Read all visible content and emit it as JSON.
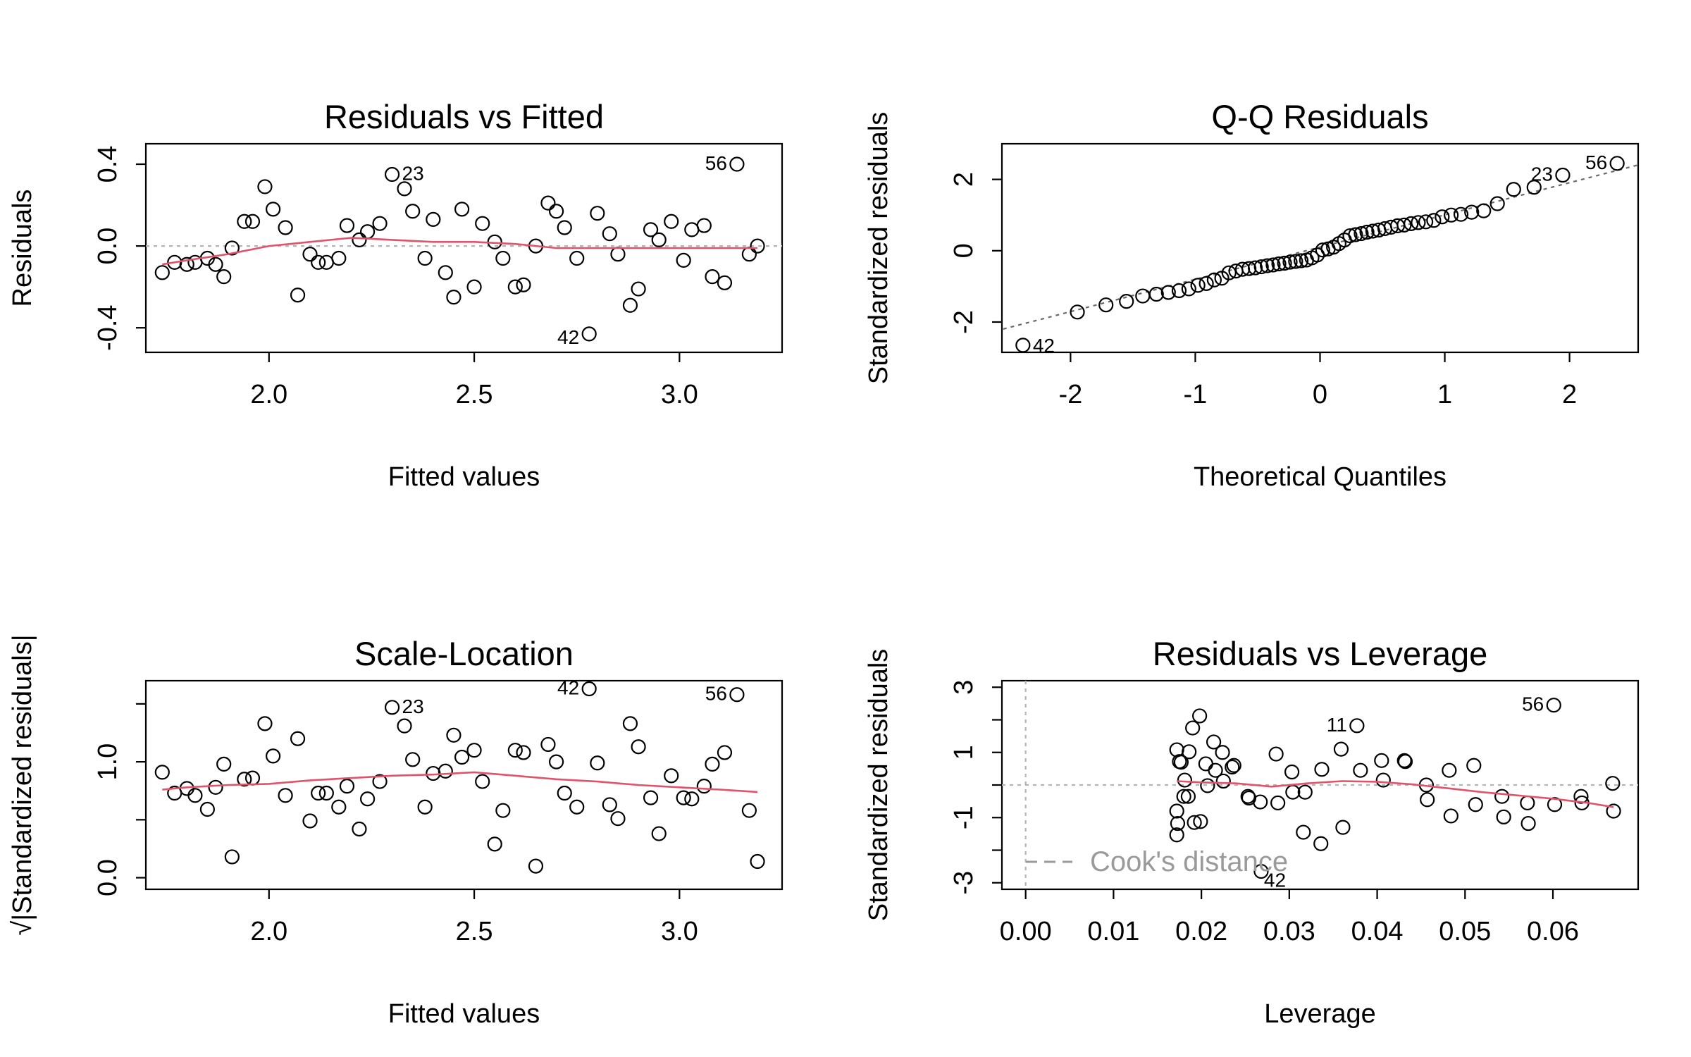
{
  "chart_data": [
    {
      "type": "scatter",
      "title": "Residuals vs Fitted",
      "xlabel": "Fitted values",
      "ylabel": "Residuals",
      "xlim": [
        1.7,
        3.25
      ],
      "ylim": [
        -0.52,
        0.5
      ],
      "xticks": [
        {
          "v": 2.0,
          "label": "2.0"
        },
        {
          "v": 2.5,
          "label": "2.5"
        },
        {
          "v": 3.0,
          "label": "3.0"
        }
      ],
      "yticks": [
        {
          "v": -0.4,
          "label": "-0.4"
        },
        {
          "v": 0.0,
          "label": "0.0"
        },
        {
          "v": 0.4,
          "label": "0.4"
        }
      ],
      "reference_h": 0,
      "points": [
        [
          1.74,
          -0.13
        ],
        [
          1.77,
          -0.08
        ],
        [
          1.8,
          -0.09
        ],
        [
          1.82,
          -0.08
        ],
        [
          1.85,
          -0.06
        ],
        [
          1.87,
          -0.09
        ],
        [
          1.89,
          -0.15
        ],
        [
          1.91,
          -0.01
        ],
        [
          1.94,
          0.12
        ],
        [
          1.96,
          0.12
        ],
        [
          1.99,
          0.29
        ],
        [
          2.01,
          0.18
        ],
        [
          2.04,
          0.09
        ],
        [
          2.07,
          -0.24
        ],
        [
          2.1,
          -0.04
        ],
        [
          2.12,
          -0.08
        ],
        [
          2.14,
          -0.08
        ],
        [
          2.17,
          -0.06
        ],
        [
          2.19,
          0.1
        ],
        [
          2.22,
          0.03
        ],
        [
          2.24,
          0.07
        ],
        [
          2.27,
          0.11
        ],
        [
          2.3,
          0.35
        ],
        [
          2.33,
          0.28
        ],
        [
          2.35,
          0.17
        ],
        [
          2.38,
          -0.06
        ],
        [
          2.4,
          0.13
        ],
        [
          2.43,
          -0.13
        ],
        [
          2.45,
          -0.25
        ],
        [
          2.47,
          0.18
        ],
        [
          2.5,
          -0.2
        ],
        [
          2.52,
          0.11
        ],
        [
          2.55,
          0.02
        ],
        [
          2.57,
          -0.06
        ],
        [
          2.6,
          -0.2
        ],
        [
          2.62,
          -0.19
        ],
        [
          2.65,
          0.0
        ],
        [
          2.68,
          0.21
        ],
        [
          2.7,
          0.17
        ],
        [
          2.72,
          0.09
        ],
        [
          2.75,
          -0.06
        ],
        [
          2.78,
          -0.43
        ],
        [
          2.8,
          0.16
        ],
        [
          2.83,
          0.06
        ],
        [
          2.85,
          -0.04
        ],
        [
          2.88,
          -0.29
        ],
        [
          2.9,
          -0.21
        ],
        [
          2.93,
          0.08
        ],
        [
          2.95,
          0.03
        ],
        [
          2.98,
          0.12
        ],
        [
          3.01,
          -0.07
        ],
        [
          3.03,
          0.08
        ],
        [
          3.06,
          0.1
        ],
        [
          3.08,
          -0.15
        ],
        [
          3.11,
          -0.18
        ],
        [
          3.14,
          0.4
        ],
        [
          3.17,
          -0.04
        ],
        [
          3.19,
          0.0
        ]
      ],
      "labels": [
        {
          "text": "23",
          "x": 2.3,
          "y": 0.35
        },
        {
          "text": "56",
          "x": 3.14,
          "y": 0.4
        },
        {
          "text": "42",
          "x": 2.78,
          "y": -0.43
        }
      ],
      "smooth": [
        [
          1.74,
          -0.09
        ],
        [
          1.8,
          -0.07
        ],
        [
          1.9,
          -0.04
        ],
        [
          2.0,
          0.0
        ],
        [
          2.1,
          0.02
        ],
        [
          2.2,
          0.04
        ],
        [
          2.3,
          0.03
        ],
        [
          2.4,
          0.02
        ],
        [
          2.5,
          0.02
        ],
        [
          2.6,
          0.01
        ],
        [
          2.7,
          -0.01
        ],
        [
          2.8,
          -0.01
        ],
        [
          2.9,
          -0.01
        ],
        [
          3.0,
          -0.01
        ],
        [
          3.1,
          -0.01
        ],
        [
          3.19,
          -0.01
        ]
      ]
    },
    {
      "type": "scatter",
      "title": "Q-Q Residuals",
      "xlabel": "Theoretical Quantiles",
      "ylabel": "Standardized residuals",
      "xlim": [
        -2.55,
        2.55
      ],
      "ylim": [
        -2.85,
        3.0
      ],
      "xticks": [
        {
          "v": -2,
          "label": "-2"
        },
        {
          "v": -1,
          "label": "-1"
        },
        {
          "v": 0,
          "label": "0"
        },
        {
          "v": 1,
          "label": "1"
        },
        {
          "v": 2,
          "label": "2"
        }
      ],
      "yticks": [
        {
          "v": -2,
          "label": "-2"
        },
        {
          "v": 0,
          "label": "0"
        },
        {
          "v": 2,
          "label": "2"
        }
      ],
      "qq_line": [
        [
          -2.6,
          -2.25
        ],
        [
          2.6,
          2.45
        ]
      ],
      "qq_y": [
        -2.65,
        -1.72,
        -1.52,
        -1.42,
        -1.27,
        -1.22,
        -1.17,
        -1.12,
        -1.07,
        -0.97,
        -0.92,
        -0.82,
        -0.77,
        -0.62,
        -0.57,
        -0.52,
        -0.5,
        -0.48,
        -0.45,
        -0.42,
        -0.4,
        -0.37,
        -0.35,
        -0.32,
        -0.3,
        -0.28,
        -0.26,
        -0.2,
        -0.12,
        0.02,
        0.05,
        0.1,
        0.2,
        0.3,
        0.42,
        0.45,
        0.48,
        0.52,
        0.55,
        0.58,
        0.62,
        0.66,
        0.7,
        0.72,
        0.76,
        0.79,
        0.81,
        0.85,
        0.95,
        1.0,
        1.02,
        1.08,
        1.12,
        1.32,
        1.72,
        1.78,
        2.12,
        2.45
      ],
      "labels": [
        {
          "text": "42",
          "idx": 0
        },
        {
          "text": "23",
          "idx": 56
        },
        {
          "text": "56",
          "idx": 57
        }
      ]
    },
    {
      "type": "scatter",
      "title": "Scale-Location",
      "xlabel": "Fitted values",
      "ylabel": "√|Standardized residuals|",
      "xlim": [
        1.7,
        3.25
      ],
      "ylim": [
        -0.1,
        1.7
      ],
      "xticks": [
        {
          "v": 2.0,
          "label": "2.0"
        },
        {
          "v": 2.5,
          "label": "2.5"
        },
        {
          "v": 3.0,
          "label": "3.0"
        }
      ],
      "yticks": [
        {
          "v": 0.0,
          "label": "0.0"
        },
        {
          "v": 0.5,
          "label": ""
        },
        {
          "v": 1.0,
          "label": "1.0"
        },
        {
          "v": 1.5,
          "label": ""
        }
      ],
      "points": [
        [
          1.74,
          0.91
        ],
        [
          1.77,
          0.73
        ],
        [
          1.8,
          0.77
        ],
        [
          1.82,
          0.71
        ],
        [
          1.85,
          0.59
        ],
        [
          1.87,
          0.78
        ],
        [
          1.89,
          0.98
        ],
        [
          1.91,
          0.18
        ],
        [
          1.94,
          0.85
        ],
        [
          1.96,
          0.86
        ],
        [
          1.99,
          1.33
        ],
        [
          2.01,
          1.05
        ],
        [
          2.04,
          0.71
        ],
        [
          2.07,
          1.2
        ],
        [
          2.1,
          0.49
        ],
        [
          2.12,
          0.73
        ],
        [
          2.14,
          0.73
        ],
        [
          2.17,
          0.61
        ],
        [
          2.19,
          0.79
        ],
        [
          2.22,
          0.42
        ],
        [
          2.24,
          0.68
        ],
        [
          2.27,
          0.83
        ],
        [
          2.3,
          1.47
        ],
        [
          2.33,
          1.31
        ],
        [
          2.35,
          1.02
        ],
        [
          2.38,
          0.61
        ],
        [
          2.4,
          0.9
        ],
        [
          2.43,
          0.92
        ],
        [
          2.45,
          1.23
        ],
        [
          2.47,
          1.04
        ],
        [
          2.5,
          1.1
        ],
        [
          2.52,
          0.83
        ],
        [
          2.55,
          0.29
        ],
        [
          2.57,
          0.58
        ],
        [
          2.6,
          1.1
        ],
        [
          2.62,
          1.08
        ],
        [
          2.65,
          0.1
        ],
        [
          2.68,
          1.15
        ],
        [
          2.7,
          1.0
        ],
        [
          2.72,
          0.73
        ],
        [
          2.75,
          0.61
        ],
        [
          2.78,
          1.63
        ],
        [
          2.8,
          0.99
        ],
        [
          2.83,
          0.63
        ],
        [
          2.85,
          0.51
        ],
        [
          2.88,
          1.33
        ],
        [
          2.9,
          1.13
        ],
        [
          2.93,
          0.69
        ],
        [
          2.95,
          0.38
        ],
        [
          2.98,
          0.88
        ],
        [
          3.01,
          0.69
        ],
        [
          3.03,
          0.68
        ],
        [
          3.06,
          0.79
        ],
        [
          3.08,
          0.98
        ],
        [
          3.11,
          1.08
        ],
        [
          3.14,
          1.58
        ],
        [
          3.17,
          0.58
        ],
        [
          3.19,
          0.14
        ]
      ],
      "labels": [
        {
          "text": "23",
          "x": 2.3,
          "y": 1.47
        },
        {
          "text": "42",
          "x": 2.78,
          "y": 1.63
        },
        {
          "text": "56",
          "x": 3.14,
          "y": 1.58
        }
      ],
      "smooth": [
        [
          1.74,
          0.76
        ],
        [
          1.8,
          0.78
        ],
        [
          1.9,
          0.8
        ],
        [
          2.0,
          0.81
        ],
        [
          2.1,
          0.84
        ],
        [
          2.2,
          0.86
        ],
        [
          2.3,
          0.88
        ],
        [
          2.4,
          0.89
        ],
        [
          2.5,
          0.91
        ],
        [
          2.6,
          0.88
        ],
        [
          2.7,
          0.85
        ],
        [
          2.8,
          0.83
        ],
        [
          2.9,
          0.8
        ],
        [
          3.0,
          0.78
        ],
        [
          3.1,
          0.76
        ],
        [
          3.19,
          0.74
        ]
      ]
    },
    {
      "type": "scatter",
      "title": "Residuals vs Leverage",
      "xlabel": "Leverage",
      "ylabel": "Standardized residuals",
      "xlim": [
        -0.0027,
        0.0697
      ],
      "ylim": [
        -3.2,
        3.2
      ],
      "xticks": [
        {
          "v": 0.0,
          "label": "0.00"
        },
        {
          "v": 0.01,
          "label": "0.01"
        },
        {
          "v": 0.02,
          "label": "0.02"
        },
        {
          "v": 0.03,
          "label": "0.03"
        },
        {
          "v": 0.04,
          "label": "0.04"
        },
        {
          "v": 0.05,
          "label": "0.05"
        },
        {
          "v": 0.06,
          "label": "0.06"
        }
      ],
      "yticks": [
        {
          "v": -3,
          "label": "-3"
        },
        {
          "v": -2,
          "label": ""
        },
        {
          "v": -1,
          "label": "-1"
        },
        {
          "v": 0,
          "label": ""
        },
        {
          "v": 1,
          "label": "1"
        },
        {
          "v": 2,
          "label": ""
        },
        {
          "v": 3,
          "label": "3"
        }
      ],
      "reference_h": 0,
      "reference_v": 0,
      "legend": "Cook's distance",
      "points": [
        [
          0.0172,
          1.08
        ],
        [
          0.0175,
          0.72
        ],
        [
          0.0177,
          0.7
        ],
        [
          0.0172,
          -0.8
        ],
        [
          0.0173,
          -1.18
        ],
        [
          0.0172,
          -1.53
        ],
        [
          0.018,
          -0.35
        ],
        [
          0.0181,
          0.15
        ],
        [
          0.0185,
          -0.35
        ],
        [
          0.0186,
          1.02
        ],
        [
          0.019,
          1.75
        ],
        [
          0.0192,
          -1.15
        ],
        [
          0.0198,
          2.12
        ],
        [
          0.0199,
          -1.12
        ],
        [
          0.0205,
          0.65
        ],
        [
          0.0207,
          -0.02
        ],
        [
          0.0214,
          1.32
        ],
        [
          0.0216,
          0.45
        ],
        [
          0.0224,
          1.0
        ],
        [
          0.0225,
          0.12
        ],
        [
          0.0235,
          0.55
        ],
        [
          0.0237,
          0.6
        ],
        [
          0.0253,
          -0.35
        ],
        [
          0.0254,
          -0.4
        ],
        [
          0.0267,
          -0.52
        ],
        [
          0.0268,
          -2.65
        ],
        [
          0.0285,
          0.95
        ],
        [
          0.0287,
          -0.55
        ],
        [
          0.0303,
          0.4
        ],
        [
          0.0304,
          -0.22
        ],
        [
          0.0316,
          -1.45
        ],
        [
          0.0318,
          -0.22
        ],
        [
          0.0336,
          -1.8
        ],
        [
          0.0337,
          0.48
        ],
        [
          0.0359,
          1.1
        ],
        [
          0.0361,
          -1.3
        ],
        [
          0.0377,
          1.82
        ],
        [
          0.0381,
          0.45
        ],
        [
          0.0405,
          0.75
        ],
        [
          0.0407,
          0.15
        ],
        [
          0.0431,
          0.75
        ],
        [
          0.0432,
          0.72
        ],
        [
          0.0456,
          0.0
        ],
        [
          0.0457,
          -0.45
        ],
        [
          0.0482,
          0.45
        ],
        [
          0.0484,
          -0.95
        ],
        [
          0.051,
          0.6
        ],
        [
          0.0512,
          -0.6
        ],
        [
          0.0542,
          -0.35
        ],
        [
          0.0544,
          -0.98
        ],
        [
          0.0571,
          -0.55
        ],
        [
          0.0572,
          -1.18
        ],
        [
          0.0601,
          2.45
        ],
        [
          0.0602,
          -0.6
        ],
        [
          0.0632,
          -0.35
        ],
        [
          0.0633,
          -0.55
        ],
        [
          0.0668,
          0.05
        ],
        [
          0.0669,
          -0.8
        ]
      ],
      "labels": [
        {
          "text": "56",
          "x": 0.0601,
          "y": 2.45
        },
        {
          "text": "11",
          "x": 0.0377,
          "y": 1.82
        },
        {
          "text": "42",
          "x": 0.0268,
          "y": -2.65
        }
      ],
      "smooth": [
        [
          0.0172,
          0.12
        ],
        [
          0.02,
          0.08
        ],
        [
          0.024,
          0.05
        ],
        [
          0.028,
          -0.05
        ],
        [
          0.032,
          0.05
        ],
        [
          0.036,
          0.12
        ],
        [
          0.04,
          0.1
        ],
        [
          0.044,
          0.02
        ],
        [
          0.048,
          -0.1
        ],
        [
          0.052,
          -0.22
        ],
        [
          0.056,
          -0.32
        ],
        [
          0.06,
          -0.42
        ],
        [
          0.064,
          -0.55
        ],
        [
          0.0669,
          -0.68
        ]
      ]
    }
  ]
}
